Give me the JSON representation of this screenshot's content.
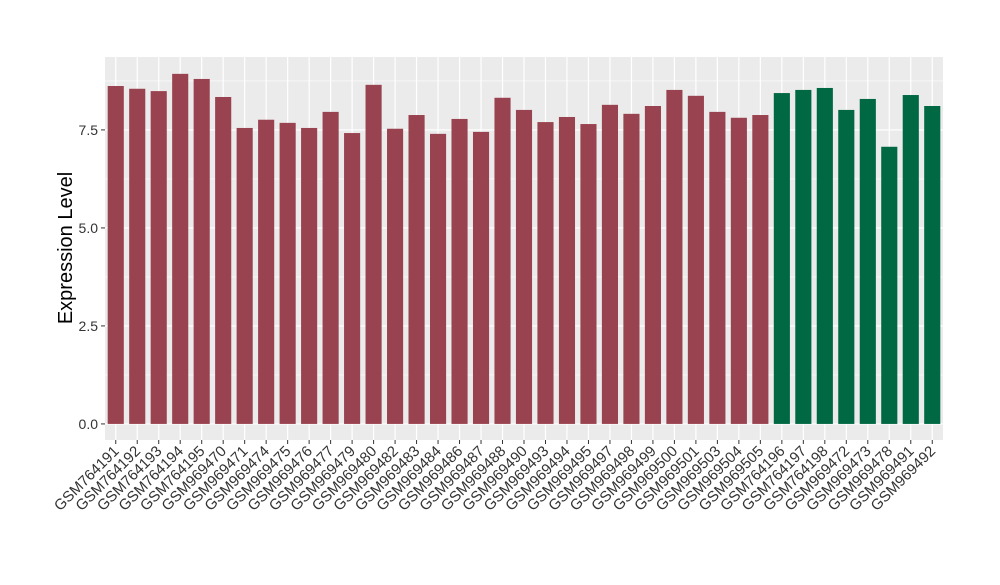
{
  "chart_data": {
    "type": "bar",
    "y_label": "Expression Level",
    "categories": [
      "GSM764191",
      "GSM764192",
      "GSM764193",
      "GSM764194",
      "GSM764195",
      "GSM969470",
      "GSM969471",
      "GSM969474",
      "GSM969475",
      "GSM969476",
      "GSM969477",
      "GSM969479",
      "GSM969480",
      "GSM969482",
      "GSM969483",
      "GSM969484",
      "GSM969486",
      "GSM969487",
      "GSM969488",
      "GSM969490",
      "GSM969493",
      "GSM969494",
      "GSM969495",
      "GSM969497",
      "GSM969498",
      "GSM969499",
      "GSM969500",
      "GSM969501",
      "GSM969503",
      "GSM969504",
      "GSM969505",
      "GSM764196",
      "GSM764197",
      "GSM764198",
      "GSM969472",
      "GSM969473",
      "GSM969478",
      "GSM969491",
      "GSM969492"
    ],
    "values": [
      8.62,
      8.55,
      8.49,
      8.93,
      8.8,
      8.34,
      7.55,
      7.76,
      7.68,
      7.55,
      7.96,
      7.42,
      8.65,
      7.53,
      7.88,
      7.4,
      7.78,
      7.45,
      8.32,
      8.01,
      7.7,
      7.83,
      7.65,
      8.14,
      7.91,
      8.11,
      8.52,
      8.37,
      7.96,
      7.81,
      7.88,
      8.44,
      8.52,
      8.57,
      8.01,
      8.29,
      7.07,
      8.39,
      8.11
    ],
    "colors": [
      "#9a4350",
      "#9a4350",
      "#9a4350",
      "#9a4350",
      "#9a4350",
      "#9a4350",
      "#9a4350",
      "#9a4350",
      "#9a4350",
      "#9a4350",
      "#9a4350",
      "#9a4350",
      "#9a4350",
      "#9a4350",
      "#9a4350",
      "#9a4350",
      "#9a4350",
      "#9a4350",
      "#9a4350",
      "#9a4350",
      "#9a4350",
      "#9a4350",
      "#9a4350",
      "#9a4350",
      "#9a4350",
      "#9a4350",
      "#9a4350",
      "#9a4350",
      "#9a4350",
      "#9a4350",
      "#9a4350",
      "#006842",
      "#006842",
      "#006842",
      "#006842",
      "#006842",
      "#006842",
      "#006842",
      "#006842"
    ],
    "ylim": [
      -0.41,
      9.36
    ],
    "yticks": [
      {
        "value": 0,
        "label": "0.0"
      },
      {
        "value": 2.5,
        "label": "2.5"
      },
      {
        "value": 5,
        "label": "5.0"
      },
      {
        "value": 7.5,
        "label": "7.5"
      }
    ],
    "grid": true
  }
}
